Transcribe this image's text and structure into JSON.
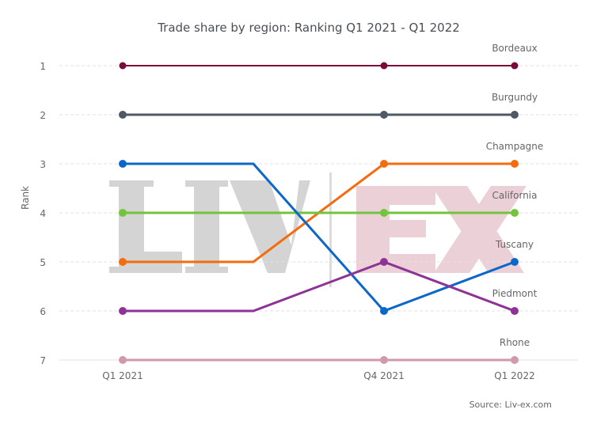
{
  "chart_data": {
    "type": "line",
    "title": "Trade share by region: Ranking Q1 2021 - Q1 2022",
    "xlabel": "",
    "ylabel": "Rank",
    "x": [
      0,
      1,
      2,
      3
    ],
    "x_ticks": [
      {
        "x": 0,
        "label": "Q1 2021"
      },
      {
        "x": 2,
        "label": "Q4 2021"
      },
      {
        "x": 3,
        "label": "Q1 2022"
      }
    ],
    "marker_x": [
      0,
      2,
      3
    ],
    "xlim": [
      -0.5,
      3.5
    ],
    "ylim": [
      7,
      1
    ],
    "y_ticks": [
      "1",
      "2",
      "3",
      "4",
      "5",
      "6",
      "7"
    ],
    "y_reversed": true,
    "grid": "horizontal dashed",
    "series": [
      {
        "name": "Bordeaux",
        "values": [
          1,
          1,
          1,
          1
        ],
        "color": "#7a0c3c",
        "width": 2
      },
      {
        "name": "Burgundy",
        "values": [
          2,
          2,
          2,
          2
        ],
        "color": "#4d5a66",
        "width": 3
      },
      {
        "name": "Champagne",
        "values": [
          5,
          5,
          3,
          3
        ],
        "color": "#f36c10",
        "width": 3
      },
      {
        "name": "California",
        "values": [
          4,
          4,
          4,
          4
        ],
        "color": "#72c43b",
        "width": 3
      },
      {
        "name": "Tuscany",
        "values": [
          3,
          3,
          6,
          5
        ],
        "color": "#0c67c8",
        "width": 3
      },
      {
        "name": "Piedmont",
        "values": [
          6,
          6,
          5,
          6
        ],
        "color": "#8e3396",
        "width": 3
      },
      {
        "name": "Rhone",
        "values": [
          7,
          7,
          7,
          7
        ],
        "color": "#d19aab",
        "width": 3
      }
    ],
    "source": "Source: Liv-ex.com",
    "watermark": {
      "left": "LIV",
      "right": "EX"
    }
  }
}
